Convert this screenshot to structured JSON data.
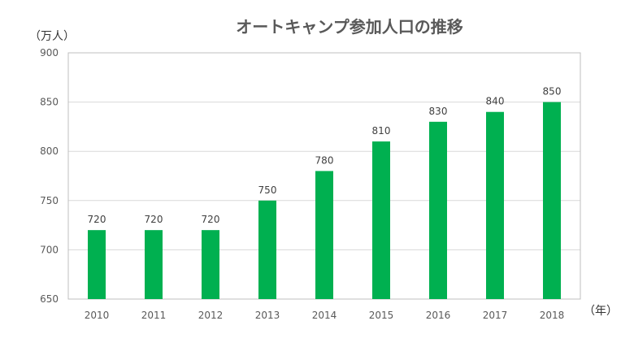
{
  "chart_data": {
    "type": "bar",
    "title": "オートキャンプ参加人口の推移",
    "y_unit_label": "（万人）",
    "x_unit_label": "（年）",
    "categories": [
      "2010",
      "2011",
      "2012",
      "2013",
      "2014",
      "2015",
      "2016",
      "2017",
      "2018"
    ],
    "values": [
      720,
      720,
      720,
      750,
      780,
      810,
      830,
      840,
      850
    ],
    "data_labels": [
      "720",
      "720",
      "720",
      "750",
      "780",
      "810",
      "830",
      "840",
      "850"
    ],
    "ylim": [
      650,
      900
    ],
    "y_ticks": [
      650,
      700,
      750,
      800,
      850,
      900
    ],
    "y_tick_labels": [
      "650",
      "700",
      "750",
      "800",
      "850",
      "900"
    ],
    "grid": true,
    "legend": "none",
    "colors": {
      "bar": "#00b050",
      "grid": "#d9d9d9",
      "axis": "#bfbfbf",
      "title": "#595959",
      "text": "#595959"
    }
  }
}
